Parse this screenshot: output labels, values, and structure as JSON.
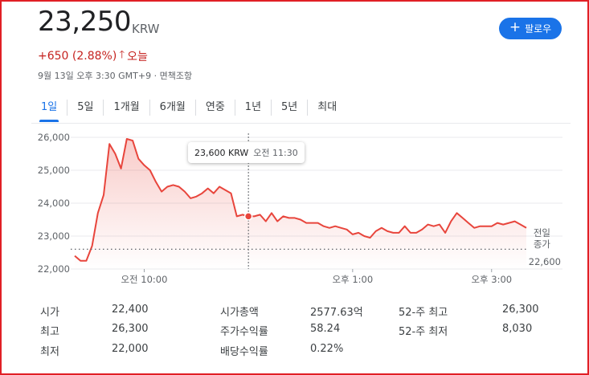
{
  "quote": {
    "price": "23,250",
    "currency": "KRW",
    "change": "+650 (2.88%)",
    "change_arrow": "🡑",
    "change_period": "오늘",
    "timestamp": "9월 13일 오후 3:30 GMT+9 · 면책조항",
    "follow_label": "팔로우",
    "follow_icon": "plus-icon",
    "accent_color": "#1a73e8",
    "negative_color": "#c5221f"
  },
  "tabs": [
    {
      "label": "1일",
      "active": true
    },
    {
      "label": "5일",
      "active": false
    },
    {
      "label": "1개월",
      "active": false
    },
    {
      "label": "6개월",
      "active": false
    },
    {
      "label": "연중",
      "active": false
    },
    {
      "label": "1년",
      "active": false
    },
    {
      "label": "5년",
      "active": false
    },
    {
      "label": "최대",
      "active": false
    }
  ],
  "chart_data": {
    "type": "line",
    "line_color": "#e8453c",
    "ylim": [
      22000,
      26000
    ],
    "yticks": [
      "26,000",
      "25,000",
      "24,000",
      "23,000",
      "22,000"
    ],
    "xticks": [
      "오전 10:00",
      "오후 1:00",
      "오후 3:00"
    ],
    "prev_close_label": [
      "전일",
      "종가"
    ],
    "prev_close_value": "22,600",
    "tooltip": {
      "price": "23,600 KRW",
      "time": "오전 11:30"
    },
    "x": [
      "09:00",
      "09:05",
      "09:10",
      "09:15",
      "09:20",
      "09:25",
      "09:30",
      "09:35",
      "09:40",
      "09:45",
      "09:50",
      "09:55",
      "10:00",
      "10:05",
      "10:10",
      "10:15",
      "10:20",
      "10:25",
      "10:30",
      "10:35",
      "10:40",
      "10:45",
      "10:50",
      "10:55",
      "11:00",
      "11:05",
      "11:10",
      "11:15",
      "11:20",
      "11:25",
      "11:30",
      "11:35",
      "11:40",
      "11:45",
      "11:50",
      "11:55",
      "12:00",
      "12:05",
      "12:10",
      "12:15",
      "12:20",
      "12:25",
      "12:30",
      "12:35",
      "12:40",
      "12:45",
      "12:50",
      "12:55",
      "13:00",
      "13:05",
      "13:10",
      "13:15",
      "13:20",
      "13:25",
      "13:30",
      "13:35",
      "13:40",
      "13:45",
      "13:50",
      "13:55",
      "14:00",
      "14:05",
      "14:10",
      "14:15",
      "14:20",
      "14:25",
      "14:30",
      "14:35",
      "14:40",
      "14:45",
      "14:50",
      "14:55",
      "15:00",
      "15:05",
      "15:10",
      "15:15",
      "15:20",
      "15:25",
      "15:30"
    ],
    "values": [
      22400,
      22250,
      22250,
      22700,
      23700,
      24250,
      25800,
      25500,
      25050,
      25950,
      25900,
      25350,
      25150,
      25000,
      24650,
      24350,
      24500,
      24550,
      24500,
      24350,
      24150,
      24200,
      24300,
      24450,
      24300,
      24500,
      24400,
      24300,
      23600,
      23650,
      23600,
      23600,
      23650,
      23450,
      23700,
      23450,
      23600,
      23550,
      23550,
      23500,
      23400,
      23400,
      23400,
      23300,
      23250,
      23300,
      23250,
      23200,
      23050,
      23100,
      23000,
      22950,
      23150,
      23250,
      23150,
      23100,
      23100,
      23300,
      23100,
      23100,
      23200,
      23350,
      23300,
      23350,
      23100,
      23450,
      23700,
      23550,
      23400,
      23250,
      23300,
      23300,
      23300,
      23400,
      23350,
      23400,
      23450,
      23350,
      23250
    ]
  },
  "stats": [
    {
      "label": "시가",
      "value": "22,400"
    },
    {
      "label": "최고",
      "value": "26,300"
    },
    {
      "label": "최저",
      "value": "22,000"
    },
    {
      "label": "시가총액",
      "value": "2577.63억"
    },
    {
      "label": "주가수익률",
      "value": "58.24"
    },
    {
      "label": "배당수익률",
      "value": "0.22%"
    },
    {
      "label": "52-주 최고",
      "value": "26,300"
    },
    {
      "label": "52-주 최저",
      "value": "8,030"
    }
  ]
}
